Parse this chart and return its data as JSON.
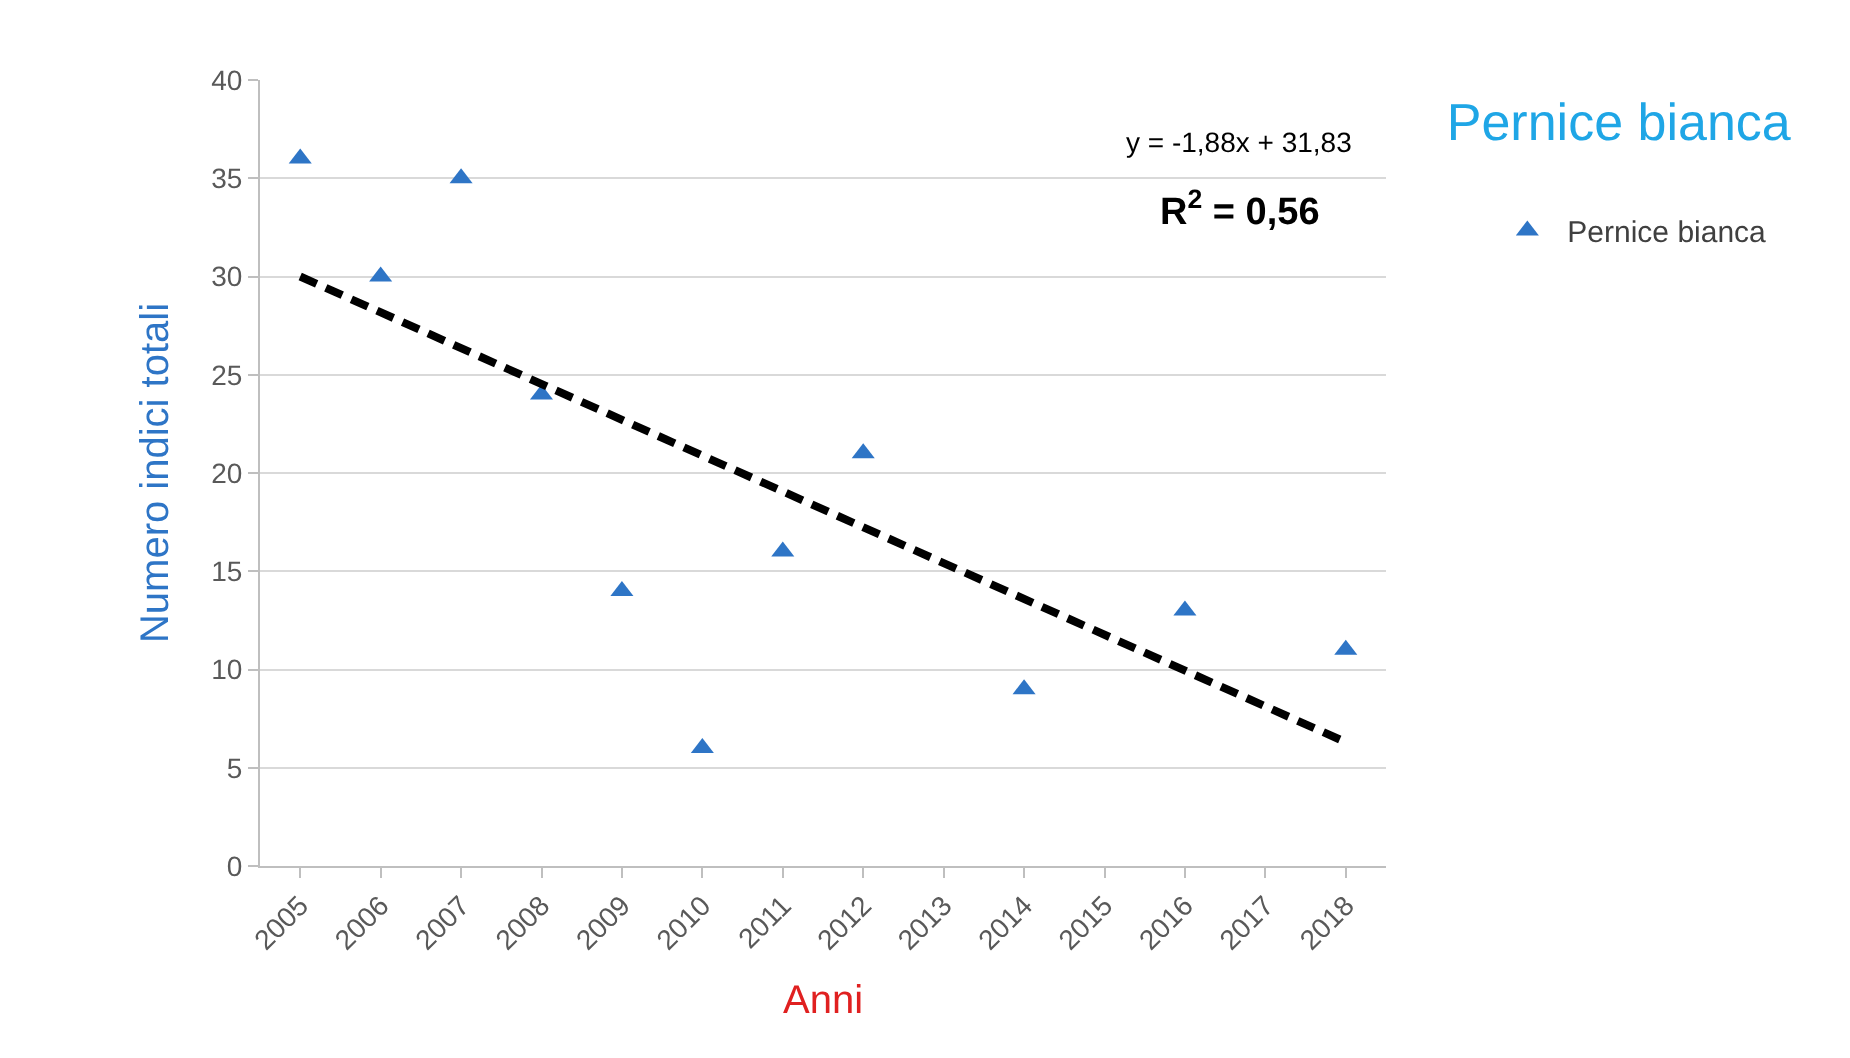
{
  "chart_data": {
    "type": "scatter",
    "title": "Pernice bianca",
    "xlabel": "Anni",
    "ylabel": "Numero indici totali",
    "categories": [
      "2005",
      "2006",
      "2007",
      "2008",
      "2009",
      "2010",
      "2011",
      "2012",
      "2013",
      "2014",
      "2015",
      "2016",
      "2017",
      "2018"
    ],
    "series": [
      {
        "name": "Pernice bianca",
        "color": "#2e75c6",
        "marker": "triangle",
        "values": [
          36,
          30,
          35,
          24,
          14,
          6,
          16,
          21,
          null,
          9,
          null,
          13,
          null,
          11
        ]
      },
      {
        "type": "line",
        "color": "#000000",
        "line_style": "dashed",
        "values": [
          30,
          null,
          null,
          null,
          null,
          null,
          null,
          null,
          null,
          null,
          null,
          null,
          null,
          6.3
        ]
      }
    ],
    "annotations": [
      "y = -1,88x + 31,83",
      "R$^{2}$ = 0,56"
    ],
    "ylim": [
      0,
      40
    ],
    "yticks": [
      0,
      5,
      10,
      15,
      20,
      25,
      30,
      35,
      40
    ],
    "grid": "y",
    "legend": "top right"
  }
}
